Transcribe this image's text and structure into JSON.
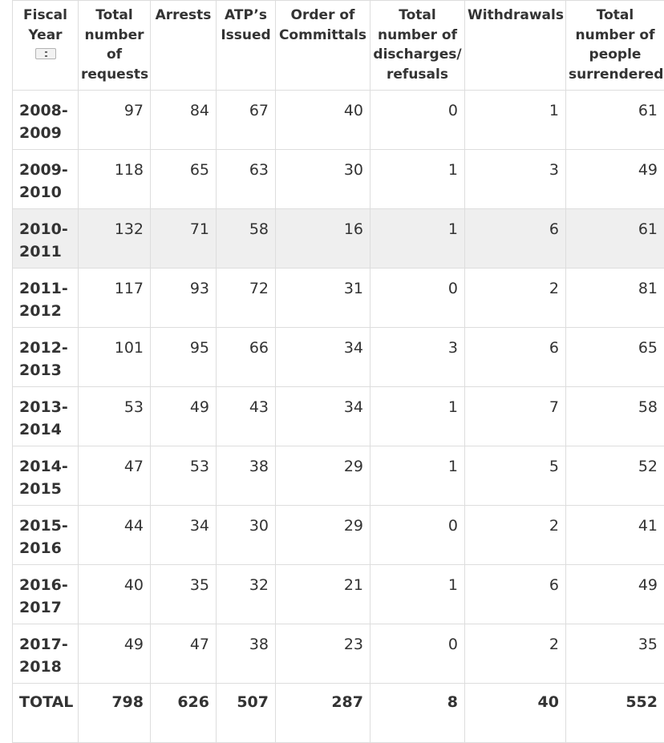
{
  "table": {
    "headers": [
      "Fiscal Year",
      "Total number of requests",
      "Arrests",
      "ATP’s Issued",
      "Order of Committals",
      "Total number of discharges/ refusals",
      "Withdrawals",
      "Total number of people surrendered"
    ],
    "sort_icon": "sort-icon",
    "highlight_row": 2,
    "highlight_color": "#efefef",
    "rows": [
      [
        "2008-2009",
        "97",
        "84",
        "67",
        "40",
        "0",
        "1",
        "61"
      ],
      [
        "2009-2010",
        "118",
        "65",
        "63",
        "30",
        "1",
        "3",
        "49"
      ],
      [
        "2010-2011",
        "132",
        "71",
        "58",
        "16",
        "1",
        "6",
        "61"
      ],
      [
        "2011-2012",
        "117",
        "93",
        "72",
        "31",
        "0",
        "2",
        "81"
      ],
      [
        "2012-2013",
        "101",
        "95",
        "66",
        "34",
        "3",
        "6",
        "65"
      ],
      [
        "2013-2014",
        "53",
        "49",
        "43",
        "34",
        "1",
        "7",
        "58"
      ],
      [
        "2014-2015",
        "47",
        "53",
        "38",
        "29",
        "1",
        "5",
        "52"
      ],
      [
        "2015-2016",
        "44",
        "34",
        "30",
        "29",
        "0",
        "2",
        "41"
      ],
      [
        "2016-2017",
        "40",
        "35",
        "32",
        "21",
        "1",
        "6",
        "49"
      ],
      [
        "2017-2018",
        "49",
        "47",
        "38",
        "23",
        "0",
        "2",
        "35"
      ]
    ],
    "total": [
      "TOTAL",
      "798",
      "626",
      "507",
      "287",
      "8",
      "40",
      "552"
    ]
  }
}
